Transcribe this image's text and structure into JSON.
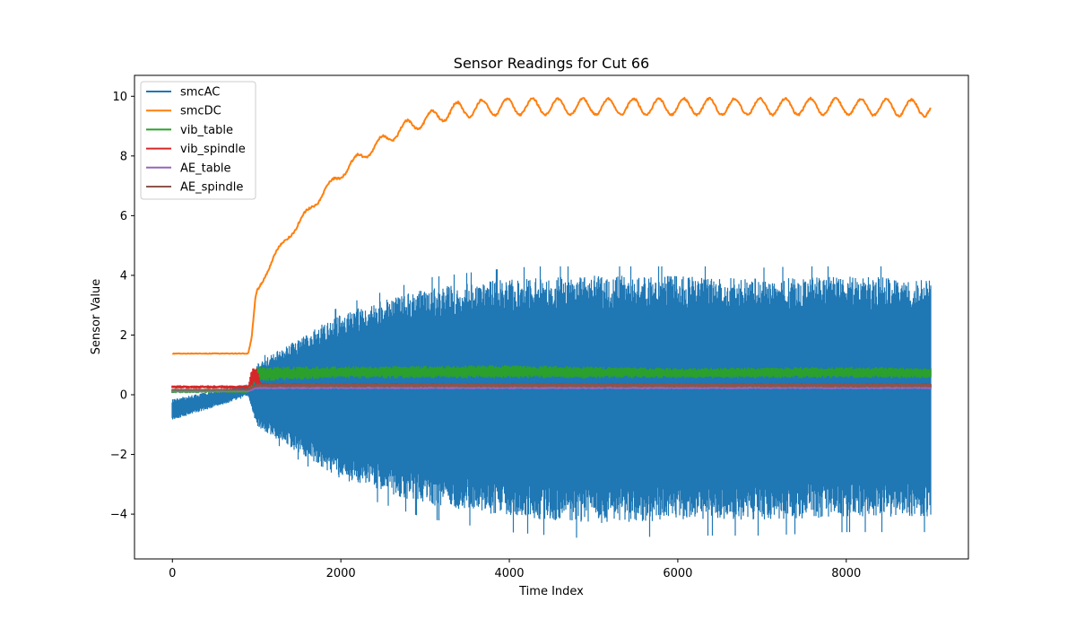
{
  "chart_data": {
    "type": "line",
    "title": "Sensor Readings for Cut 66",
    "xlabel": "Time Index",
    "ylabel": "Sensor Value",
    "xlim": [
      -450,
      9450
    ],
    "ylim": [
      -5.5,
      10.7
    ],
    "xticks": [
      0,
      2000,
      4000,
      6000,
      8000
    ],
    "xtick_labels": [
      "0",
      "2000",
      "4000",
      "6000",
      "8000"
    ],
    "yticks": [
      -4,
      -2,
      0,
      2,
      4,
      6,
      8,
      10
    ],
    "ytick_labels": [
      "−4",
      "−2",
      "0",
      "2",
      "4",
      "6",
      "8",
      "10"
    ],
    "grid": false,
    "legend_position": "upper-left",
    "x_range": [
      0,
      9000
    ],
    "series": [
      {
        "name": "smcAC",
        "color": "#1f77b4",
        "kind": "oscillation-band",
        "start_value": -0.5,
        "transition_index": 900,
        "envelope": {
          "x": [
            0,
            900,
            1000,
            2000,
            3000,
            4000,
            5000,
            6000,
            7000,
            8000,
            9000
          ],
          "upper": [
            -0.2,
            0.3,
            1.0,
            2.6,
            3.4,
            3.7,
            3.8,
            3.8,
            3.7,
            3.8,
            3.7
          ],
          "lower": [
            -0.8,
            0.0,
            -1.0,
            -2.7,
            -3.5,
            -3.9,
            -4.1,
            -4.0,
            -4.0,
            -3.9,
            -3.9
          ],
          "upper_peak": 4.3,
          "lower_peak": -4.8
        }
      },
      {
        "name": "smcDC",
        "color": "#ff7f0e",
        "kind": "line",
        "x": [
          0,
          900,
          940,
          980,
          1000,
          1100,
          1200,
          1400,
          1600,
          1800,
          2000,
          2200,
          2400,
          2600,
          2800,
          3000,
          3200,
          3400,
          3600,
          4000,
          5000,
          6000,
          7000,
          8000,
          9000
        ],
        "values": [
          1.38,
          1.38,
          1.9,
          3.1,
          3.4,
          4.0,
          4.6,
          5.4,
          6.1,
          6.8,
          7.4,
          7.9,
          8.3,
          8.7,
          9.0,
          9.2,
          9.4,
          9.55,
          9.6,
          9.65,
          9.65,
          9.65,
          9.65,
          9.65,
          9.6
        ],
        "ripple_amplitude": 0.27,
        "ripple_period": 300
      },
      {
        "name": "vib_table",
        "color": "#2ca02c",
        "kind": "band",
        "x": [
          0,
          900,
          1000,
          2000,
          4000,
          6000,
          8000,
          9000
        ],
        "upper": [
          0.2,
          0.2,
          0.95,
          0.95,
          1.0,
          0.9,
          0.95,
          0.9
        ],
        "lower": [
          0.05,
          0.05,
          0.45,
          0.55,
          0.55,
          0.55,
          0.55,
          0.55
        ]
      },
      {
        "name": "vib_spindle",
        "color": "#d62728",
        "kind": "band",
        "x": [
          0,
          900,
          950,
          1000,
          1050,
          2000,
          9000
        ],
        "upper": [
          0.32,
          0.32,
          1.0,
          0.95,
          0.4,
          0.38,
          0.38
        ],
        "lower": [
          0.2,
          0.2,
          0.3,
          0.3,
          0.22,
          0.22,
          0.22
        ]
      },
      {
        "name": "AE_table",
        "color": "#9467bd",
        "kind": "band",
        "x": [
          0,
          900,
          1000,
          9000
        ],
        "upper": [
          0.14,
          0.14,
          0.3,
          0.3
        ],
        "lower": [
          0.08,
          0.08,
          0.18,
          0.18
        ]
      },
      {
        "name": "AE_spindle",
        "color": "#8c564b",
        "kind": "band",
        "x": [
          0,
          900,
          1000,
          9000
        ],
        "upper": [
          0.2,
          0.2,
          0.38,
          0.38
        ],
        "lower": [
          0.14,
          0.14,
          0.24,
          0.24
        ]
      }
    ]
  }
}
